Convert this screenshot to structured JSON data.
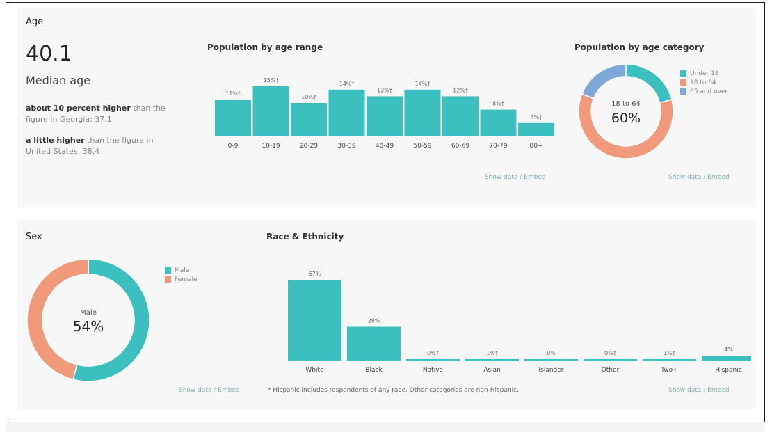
{
  "colors": {
    "teal": "#3bbfbf",
    "salmon": "#f0997b",
    "blue": "#7fa8d9",
    "link": "#7ab3b0"
  },
  "age": {
    "title": "Age",
    "median": "40.1",
    "median_label": "Median age",
    "compare1_bold": "about 10 percent higher",
    "compare1_rest": " than the figure in Georgia: 37.1",
    "compare2_bold": "a little higher",
    "compare2_rest": " than the figure in United States: 38.4"
  },
  "sex": {
    "title": "Sex",
    "center_label": "Male",
    "center_value": "54%",
    "show_data": "Show data / Embed"
  },
  "race": {
    "title": "Race & Ethnicity",
    "footnote": "* Hispanic includes respondents of any race. Other categories are non-Hispanic.",
    "show_data": "Show data / Embed"
  },
  "age_range_show": "Show data / Embed",
  "age_category_show": "Show data / Embed",
  "age_category_center_label": "18 to 64",
  "age_category_center_value": "60%",
  "chart_data": [
    {
      "type": "bar",
      "title": "Population by age range",
      "categories": [
        "0-9",
        "10-19",
        "20-29",
        "30-39",
        "40-49",
        "50-59",
        "60-69",
        "70-79",
        "80+"
      ],
      "values": [
        11,
        15,
        10,
        14,
        12,
        14,
        12,
        8,
        4
      ],
      "labels": [
        "11%†",
        "15%†",
        "10%†",
        "14%†",
        "12%†",
        "14%†",
        "12%†",
        "8%†",
        "4%†"
      ],
      "ylim": [
        0,
        15
      ]
    },
    {
      "type": "pie",
      "title": "Population by age category",
      "categories": [
        "Under 18",
        "18 to 64",
        "65 and over"
      ],
      "values": [
        21,
        60,
        19
      ],
      "colors": [
        "#3bbfbf",
        "#f0997b",
        "#7fa8d9"
      ],
      "legend_position": "right"
    },
    {
      "type": "pie",
      "title": "Sex",
      "categories": [
        "Male",
        "Female"
      ],
      "values": [
        54,
        46
      ],
      "colors": [
        "#3bbfbf",
        "#f0997b"
      ],
      "legend_position": "right"
    },
    {
      "type": "bar",
      "title": "Race & Ethnicity",
      "categories": [
        "White",
        "Black",
        "Native",
        "Asian",
        "Islander",
        "Other",
        "Two+",
        "Hispanic"
      ],
      "values": [
        67,
        28,
        0,
        1,
        0,
        0,
        1,
        4
      ],
      "labels": [
        "67%",
        "28%",
        "0%†",
        "1%†",
        "0%",
        "0%†",
        "1%†",
        "4%"
      ],
      "ylim": [
        0,
        67
      ]
    }
  ]
}
